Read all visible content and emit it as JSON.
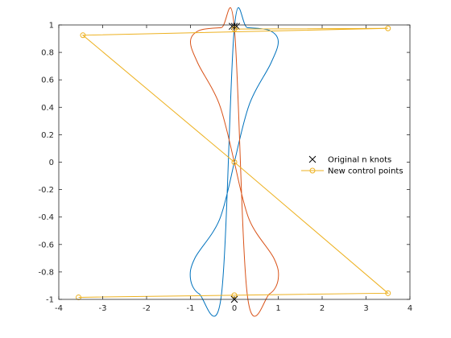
{
  "chart_data": {
    "type": "line",
    "title": "",
    "xlabel": "",
    "ylabel": "",
    "xlim": [
      -4,
      4
    ],
    "ylim": [
      -1,
      1
    ],
    "x_ticks": [
      -4,
      -3,
      -2,
      -1,
      0,
      1,
      2,
      3,
      4
    ],
    "x_tick_labels": [
      "-4",
      "-3",
      "-2",
      "-1",
      "0",
      "1",
      "2",
      "3",
      "4"
    ],
    "y_ticks": [
      1,
      0.8,
      0.6,
      0.4,
      0.2,
      0,
      -0.2,
      -0.4,
      -0.6,
      -0.8,
      -1
    ],
    "y_tick_labels": [
      "1",
      "0.8",
      "0.6",
      "0.4",
      "0.2",
      "0",
      "-0.2",
      "-0.4",
      "-0.6",
      "-0.8",
      "-1"
    ],
    "grid": false,
    "legend_position": "right",
    "curves": [
      {
        "color": "#0072BD",
        "points": [
          [
            0,
            0
          ],
          [
            0.34,
            0.42
          ],
          [
            0.83,
            0.72
          ],
          [
            1.0,
            0.88
          ],
          [
            0.8,
            0.96
          ],
          [
            0.3,
            0.98
          ],
          [
            0,
            0.98
          ],
          [
            -0.3,
            -0.98
          ],
          [
            -0.8,
            -0.96
          ],
          [
            -1.0,
            -0.85
          ],
          [
            -0.9,
            -0.7
          ],
          [
            -0.34,
            -0.42
          ],
          [
            0,
            0
          ]
        ]
      },
      {
        "color": "#D95319",
        "points": [
          [
            0,
            0
          ],
          [
            -0.34,
            0.42
          ],
          [
            -0.83,
            0.72
          ],
          [
            -1.0,
            0.88
          ],
          [
            -0.8,
            0.96
          ],
          [
            -0.3,
            0.98
          ],
          [
            0,
            0.98
          ],
          [
            0.3,
            -0.98
          ],
          [
            0.8,
            -0.96
          ],
          [
            1.0,
            -0.85
          ],
          [
            0.9,
            -0.7
          ],
          [
            0.34,
            -0.42
          ],
          [
            0,
            0
          ]
        ]
      }
    ],
    "series": [
      {
        "name": "Original n knots",
        "color": "#000000",
        "marker": "x",
        "line": false,
        "x": [
          -0.05,
          0.0,
          0.05,
          0.0
        ],
        "y": [
          0.99,
          0.99,
          0.99,
          -1.0
        ]
      },
      {
        "name": "New control points",
        "color": "#EDB120",
        "marker": "o",
        "line": true,
        "x": [
          0,
          3.5,
          -3.45,
          0,
          3.5,
          -3.55,
          0
        ],
        "y": [
          0.97,
          0.975,
          0.925,
          0,
          -0.955,
          -0.985,
          -0.97
        ]
      }
    ]
  }
}
